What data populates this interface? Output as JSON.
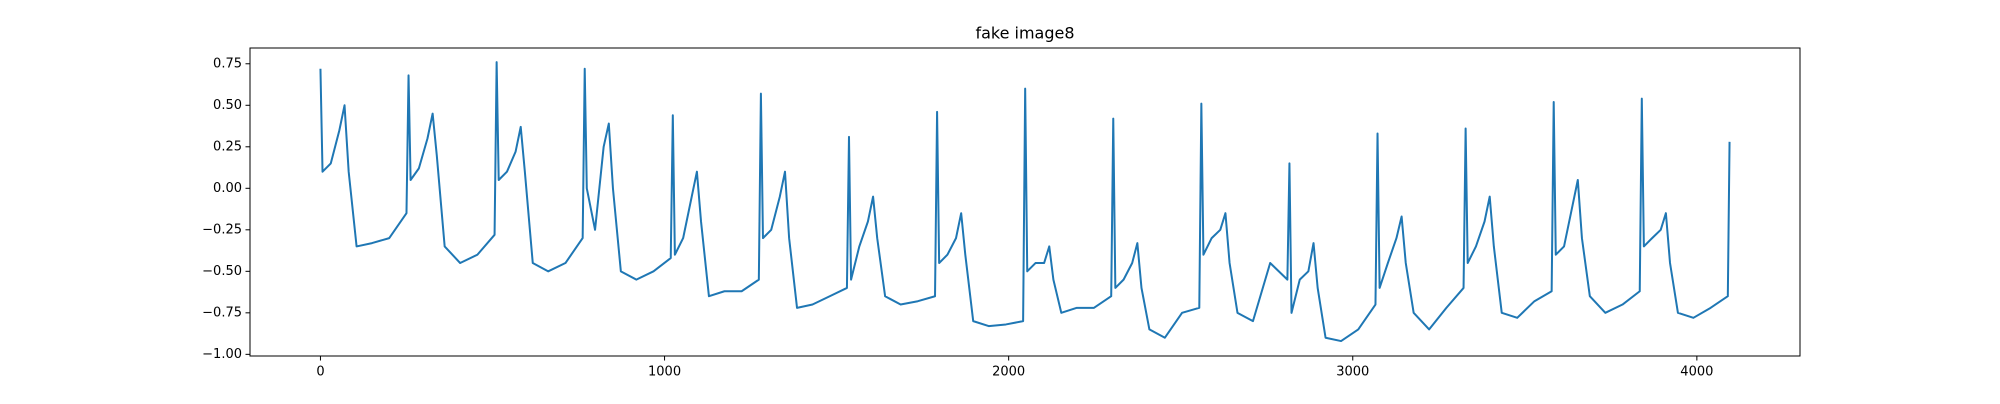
{
  "chart_data": {
    "type": "line",
    "title": "fake image8",
    "series": [
      {
        "color": "#1f77b4",
        "x": [
          0,
          6,
          30,
          55,
          70,
          82,
          105,
          150,
          200,
          250,
          256,
          262,
          286,
          311,
          326,
          338,
          361,
          406,
          456,
          506,
          512,
          518,
          542,
          567,
          582,
          594,
          617,
          662,
          712,
          762,
          768,
          774,
          798,
          823,
          838,
          850,
          873,
          918,
          968,
          1018,
          1024,
          1030,
          1054,
          1079,
          1094,
          1106,
          1129,
          1174,
          1224,
          1274,
          1280,
          1286,
          1310,
          1335,
          1350,
          1362,
          1385,
          1430,
          1480,
          1530,
          1536,
          1542,
          1566,
          1591,
          1606,
          1618,
          1641,
          1686,
          1736,
          1786,
          1792,
          1798,
          1822,
          1847,
          1862,
          1874,
          1897,
          1942,
          1992,
          2042,
          2048,
          2054,
          2078,
          2103,
          2118,
          2130,
          2153,
          2198,
          2248,
          2298,
          2304,
          2310,
          2334,
          2359,
          2374,
          2386,
          2409,
          2454,
          2504,
          2554,
          2560,
          2566,
          2590,
          2615,
          2630,
          2642,
          2665,
          2710,
          2760,
          2810,
          2816,
          2822,
          2846,
          2871,
          2886,
          2898,
          2921,
          2966,
          3016,
          3066,
          3072,
          3078,
          3102,
          3127,
          3142,
          3154,
          3177,
          3222,
          3272,
          3322,
          3328,
          3334,
          3358,
          3383,
          3398,
          3410,
          3433,
          3478,
          3528,
          3578,
          3584,
          3590,
          3614,
          3639,
          3654,
          3666,
          3689,
          3734,
          3784,
          3834,
          3840,
          3846,
          3870,
          3895,
          3910,
          3922,
          3945,
          3990,
          4040,
          4090,
          4095
        ],
        "values": [
          0.72,
          0.1,
          0.15,
          0.35,
          0.5,
          0.1,
          -0.35,
          -0.33,
          -0.3,
          -0.15,
          0.68,
          0.05,
          0.12,
          0.3,
          0.45,
          0.2,
          -0.35,
          -0.45,
          -0.4,
          -0.28,
          0.76,
          0.05,
          0.1,
          0.22,
          0.37,
          0.1,
          -0.45,
          -0.5,
          -0.45,
          -0.3,
          0.72,
          0.0,
          -0.25,
          0.25,
          0.39,
          0.0,
          -0.5,
          -0.55,
          -0.5,
          -0.42,
          0.44,
          -0.4,
          -0.3,
          -0.05,
          0.1,
          -0.2,
          -0.65,
          -0.62,
          -0.62,
          -0.55,
          0.57,
          -0.3,
          -0.25,
          -0.05,
          0.1,
          -0.3,
          -0.72,
          -0.7,
          -0.65,
          -0.6,
          0.31,
          -0.55,
          -0.35,
          -0.2,
          -0.05,
          -0.3,
          -0.65,
          -0.7,
          -0.68,
          -0.65,
          0.46,
          -0.45,
          -0.4,
          -0.3,
          -0.15,
          -0.4,
          -0.8,
          -0.83,
          -0.82,
          -0.8,
          0.6,
          -0.5,
          -0.45,
          -0.45,
          -0.35,
          -0.55,
          -0.75,
          -0.72,
          -0.72,
          -0.65,
          0.42,
          -0.6,
          -0.55,
          -0.45,
          -0.33,
          -0.6,
          -0.85,
          -0.9,
          -0.75,
          -0.72,
          0.51,
          -0.4,
          -0.3,
          -0.25,
          -0.15,
          -0.45,
          -0.75,
          -0.8,
          -0.45,
          -0.55,
          0.15,
          -0.75,
          -0.55,
          -0.5,
          -0.33,
          -0.6,
          -0.9,
          -0.92,
          -0.85,
          -0.7,
          0.33,
          -0.6,
          -0.45,
          -0.3,
          -0.17,
          -0.45,
          -0.75,
          -0.85,
          -0.72,
          -0.6,
          0.36,
          -0.45,
          -0.35,
          -0.2,
          -0.05,
          -0.35,
          -0.75,
          -0.78,
          -0.68,
          -0.62,
          0.52,
          -0.4,
          -0.35,
          -0.1,
          0.05,
          -0.3,
          -0.65,
          -0.75,
          -0.7,
          -0.62,
          0.54,
          -0.35,
          -0.3,
          -0.25,
          -0.15,
          -0.45,
          -0.75,
          -0.78,
          -0.72,
          -0.65,
          0.28
        ]
      }
    ],
    "xlim": [
      -204.75,
      4299.75
    ],
    "xticks": [
      0,
      1000,
      2000,
      3000,
      4000
    ],
    "ylim": [
      -1.01,
      0.845
    ],
    "yticks": [
      {
        "value": -1,
        "label": "−1.00"
      },
      {
        "value": -0.75,
        "label": "−0.75"
      },
      {
        "value": -0.5,
        "label": "−0.50"
      },
      {
        "value": -0.25,
        "label": "−0.25"
      },
      {
        "value": 0,
        "label": "0.00"
      },
      {
        "value": 0.25,
        "label": "0.25"
      },
      {
        "value": 0.5,
        "label": "0.50"
      },
      {
        "value": 0.75,
        "label": "0.75"
      }
    ]
  }
}
